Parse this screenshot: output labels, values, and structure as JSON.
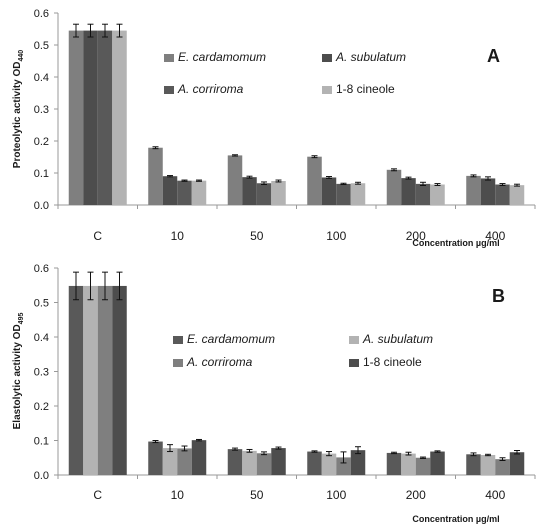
{
  "chart_data": [
    {
      "panel": "A",
      "type": "bar",
      "ylabel_main": "Proteolytic activity OD",
      "ylabel_sub": "440",
      "xlabel": "Concentration µg/ml",
      "ylim": [
        0,
        0.6
      ],
      "yticks": [
        "0.0",
        "0.1",
        "0.2",
        "0.3",
        "0.4",
        "0.5",
        "0.6"
      ],
      "categories": [
        "C",
        "10",
        "50",
        "100",
        "200",
        "400"
      ],
      "legend_placement": "top-right",
      "series": [
        {
          "name": "E. cardamomum",
          "color": "#7f7f7f",
          "values": [
            0.545,
            0.179,
            0.155,
            0.151,
            0.11,
            0.091
          ],
          "errors": [
            0.02,
            0.003,
            0.002,
            0.003,
            0.003,
            0.003
          ]
        },
        {
          "name": "A. subulatum",
          "color": "#4d4d4d",
          "values": [
            0.545,
            0.09,
            0.087,
            0.086,
            0.084,
            0.083
          ],
          "errors": [
            0.02,
            0.002,
            0.003,
            0.003,
            0.003,
            0.005
          ]
        },
        {
          "name": "A. corriroma",
          "color": "#595959",
          "values": [
            0.545,
            0.076,
            0.068,
            0.066,
            0.066,
            0.064
          ],
          "errors": [
            0.02,
            0.002,
            0.004,
            0.002,
            0.005,
            0.003
          ]
        },
        {
          "name": "1-8 cineole",
          "color": "#b3b3b3",
          "values": [
            0.545,
            0.076,
            0.075,
            0.068,
            0.064,
            0.062
          ],
          "errors": [
            0.02,
            0.002,
            0.003,
            0.003,
            0.003,
            0.003
          ]
        }
      ]
    },
    {
      "panel": "B",
      "type": "bar",
      "ylabel_main": "Elastolytic activity OD",
      "ylabel_sub": "495",
      "xlabel": "Concentration µg/ml",
      "ylim": [
        0,
        0.6
      ],
      "yticks": [
        "0.0",
        "0.1",
        "0.2",
        "0.3",
        "0.4",
        "0.5",
        "0.6"
      ],
      "categories": [
        "C",
        "10",
        "50",
        "100",
        "200",
        "400"
      ],
      "legend_placement": "center-right",
      "series": [
        {
          "name": "E. cardamomum",
          "color": "#595959",
          "values": [
            0.548,
            0.097,
            0.075,
            0.068,
            0.064,
            0.06
          ],
          "errors": [
            0.04,
            0.003,
            0.003,
            0.002,
            0.002,
            0.004
          ]
        },
        {
          "name": "A. subulatum",
          "color": "#b3b3b3",
          "values": [
            0.548,
            0.078,
            0.07,
            0.062,
            0.062,
            0.058
          ],
          "errors": [
            0.04,
            0.01,
            0.004,
            0.006,
            0.004,
            0.002
          ]
        },
        {
          "name": "A. corriroma",
          "color": "#7f7f7f",
          "values": [
            0.548,
            0.077,
            0.063,
            0.051,
            0.05,
            0.046
          ],
          "errors": [
            0.04,
            0.007,
            0.004,
            0.016,
            0.002,
            0.004
          ]
        },
        {
          "name": "1-8 cineole",
          "color": "#4d4d4d",
          "values": [
            0.548,
            0.101,
            0.078,
            0.072,
            0.068,
            0.066
          ],
          "errors": [
            0.04,
            0.002,
            0.003,
            0.01,
            0.002,
            0.005
          ]
        }
      ]
    }
  ]
}
